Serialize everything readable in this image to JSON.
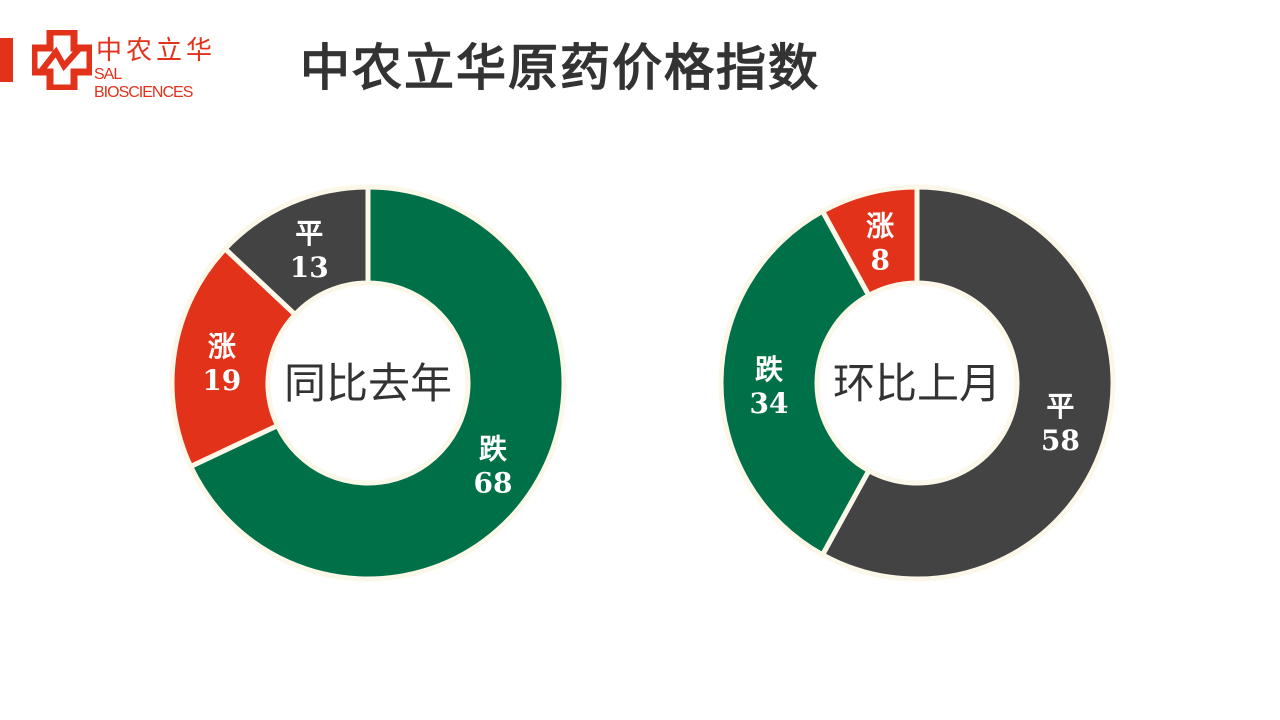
{
  "header": {
    "title": "中农立华原药价格指数",
    "logo_cn": "中农立华",
    "logo_en": "SAL BIOSCIENCES"
  },
  "colors": {
    "up": "#e3321a",
    "down": "#007048",
    "flat": "#434343",
    "brand": "#e3321a"
  },
  "chart_data": [
    {
      "type": "pie",
      "variant": "donut",
      "center_label": "同比去年",
      "slices": [
        {
          "label": "跌",
          "value": 68,
          "color": "#007048"
        },
        {
          "label": "涨",
          "value": 19,
          "color": "#e3321a"
        },
        {
          "label": "平",
          "value": 13,
          "color": "#434343"
        }
      ]
    },
    {
      "type": "pie",
      "variant": "donut",
      "center_label": "环比上月",
      "slices": [
        {
          "label": "平",
          "value": 58,
          "color": "#434343"
        },
        {
          "label": "跌",
          "value": 34,
          "color": "#007048"
        },
        {
          "label": "涨",
          "value": 8,
          "color": "#e3321a"
        }
      ]
    }
  ]
}
